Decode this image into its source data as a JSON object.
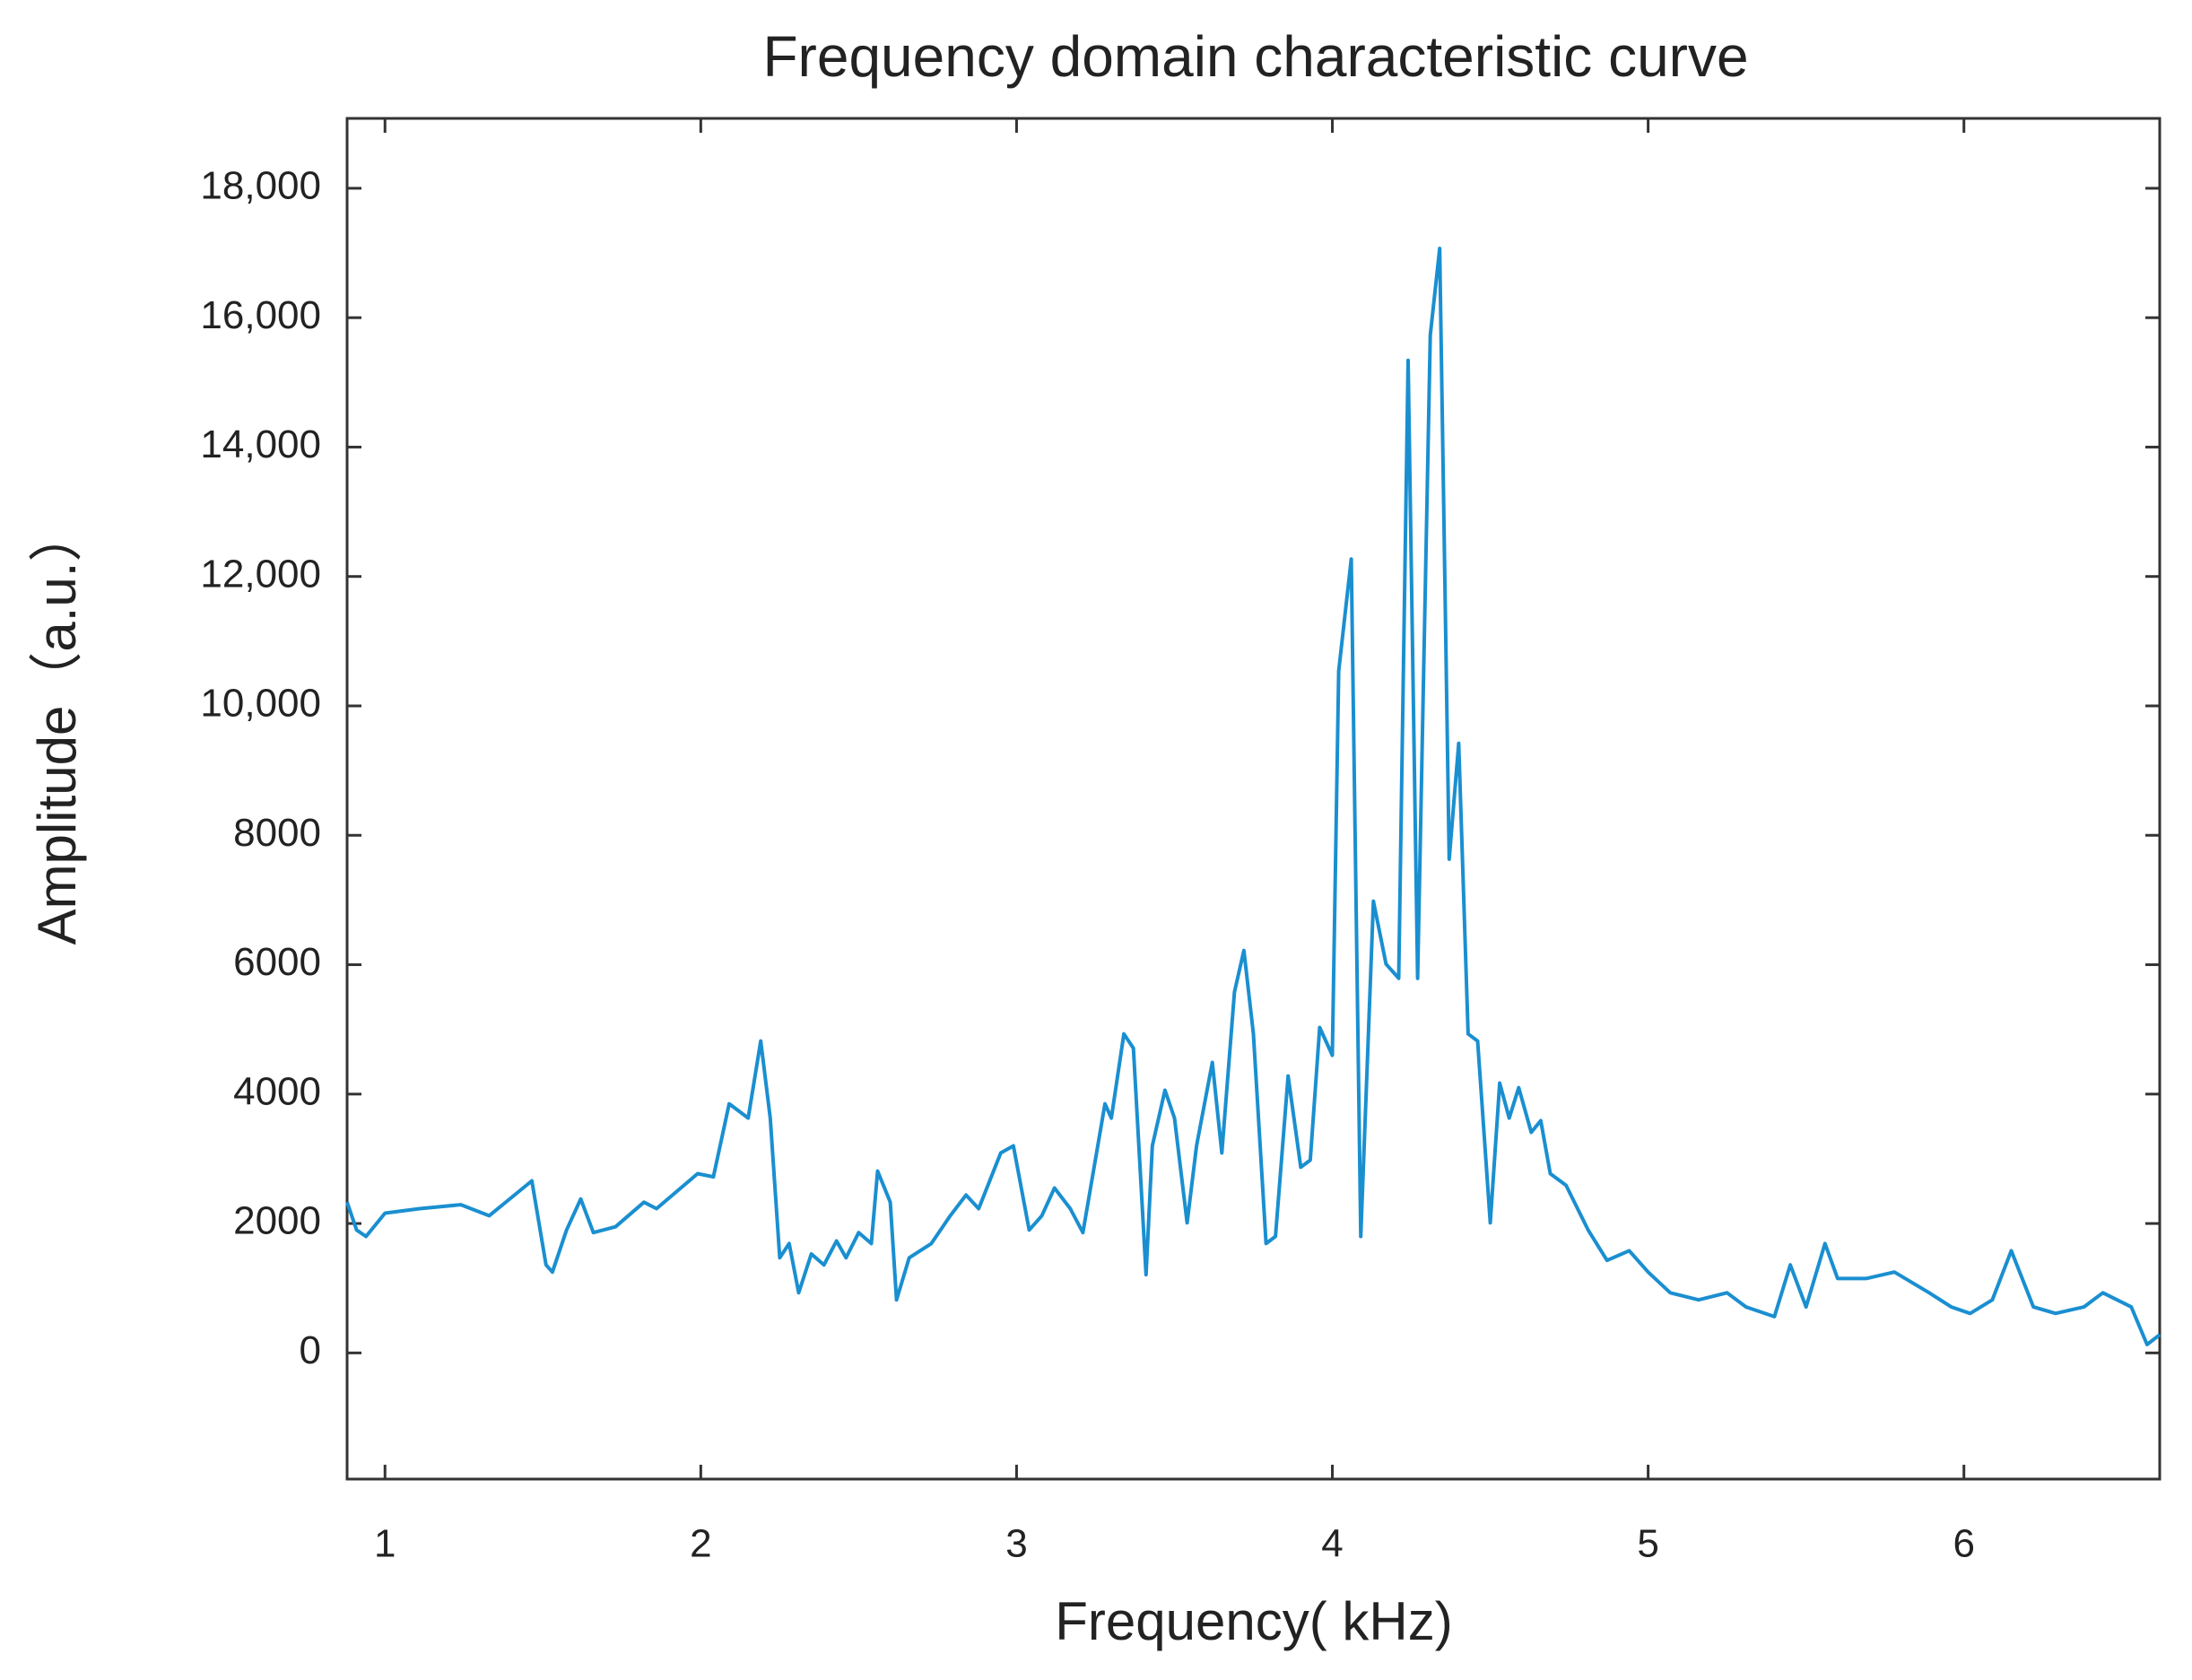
{
  "chart_data": {
    "type": "line",
    "title": "Frequency domain characteristic curve",
    "x_label": "Frequency( kHz)",
    "y_label": "Amplitude（a.u.）",
    "xlim": [
      0.88,
      6.62
    ],
    "ylim": [
      -1950,
      19080
    ],
    "xticks": [
      1,
      2,
      3,
      4,
      5,
      6
    ],
    "yticks": [
      0,
      2000,
      4000,
      6000,
      8000,
      {
        "value": 10000,
        "label": "10,000"
      },
      {
        "value": 12000,
        "label": "12,000"
      },
      {
        "value": 14000,
        "label": "14,000"
      },
      {
        "value": 16000,
        "label": "16,000"
      },
      {
        "value": 18000,
        "label": "18,000"
      }
    ],
    "series": [
      {
        "color": "#1a8fd0",
        "x": [
          0.88,
          0.91,
          0.94,
          1.0,
          1.11,
          1.24,
          1.33,
          1.465,
          1.51,
          1.53,
          1.575,
          1.62,
          1.66,
          1.73,
          1.82,
          1.86,
          1.99,
          2.04,
          2.09,
          2.15,
          2.19,
          2.22,
          2.25,
          2.28,
          2.31,
          2.35,
          2.39,
          2.43,
          2.46,
          2.5,
          2.54,
          2.56,
          2.6,
          2.62,
          2.66,
          2.73,
          2.79,
          2.84,
          2.88,
          2.95,
          2.99,
          3.04,
          3.08,
          3.12,
          3.17,
          3.21,
          3.28,
          3.3,
          3.34,
          3.37,
          3.41,
          3.43,
          3.47,
          3.5,
          3.54,
          3.57,
          3.62,
          3.65,
          3.69,
          3.72,
          3.75,
          3.79,
          3.82,
          3.86,
          3.9,
          3.93,
          3.96,
          4.0,
          4.02,
          4.06,
          4.09,
          4.13,
          4.17,
          4.21,
          4.24,
          4.27,
          4.31,
          4.34,
          4.37,
          4.4,
          4.43,
          4.46,
          4.5,
          4.53,
          4.56,
          4.59,
          4.63,
          4.66,
          4.69,
          4.74,
          4.81,
          4.87,
          4.94,
          5.0,
          5.07,
          5.16,
          5.25,
          5.31,
          5.4,
          5.45,
          5.5,
          5.56,
          5.6,
          5.69,
          5.78,
          5.89,
          5.96,
          6.02,
          6.09,
          6.15,
          6.22,
          6.29,
          6.38,
          6.44,
          6.53,
          6.58,
          6.62
        ],
        "values": [
          2330,
          1900,
          1800,
          2160,
          2230,
          2290,
          2120,
          2660,
          1360,
          1250,
          1900,
          2380,
          1860,
          1950,
          2330,
          2230,
          2770,
          2720,
          3850,
          3630,
          4820,
          3630,
          1470,
          1690,
          930,
          1530,
          1360,
          1730,
          1470,
          1860,
          1690,
          2810,
          2330,
          820,
          1470,
          1690,
          2120,
          2440,
          2230,
          3090,
          3200,
          1900,
          2120,
          2550,
          2230,
          1860,
          3850,
          3630,
          4930,
          4710,
          1210,
          3200,
          4060,
          3630,
          2010,
          3200,
          4490,
          3090,
          5580,
          6220,
          4930,
          1690,
          1800,
          4280,
          2870,
          2980,
          5030,
          4600,
          10540,
          12270,
          1800,
          6980,
          6010,
          5790,
          15340,
          5790,
          15730,
          17070,
          7630,
          9420,
          4930,
          4820,
          2010,
          4170,
          3630,
          4100,
          3410,
          3590,
          2770,
          2590,
          1900,
          1430,
          1580,
          1250,
          930,
          820,
          930,
          710,
          560,
          1360,
          710,
          1690,
          1150,
          1150,
          1250,
          930,
          710,
          610,
          820,
          1580,
          710,
          610,
          710,
          930,
          710,
          130,
          280
        ]
      }
    ]
  }
}
